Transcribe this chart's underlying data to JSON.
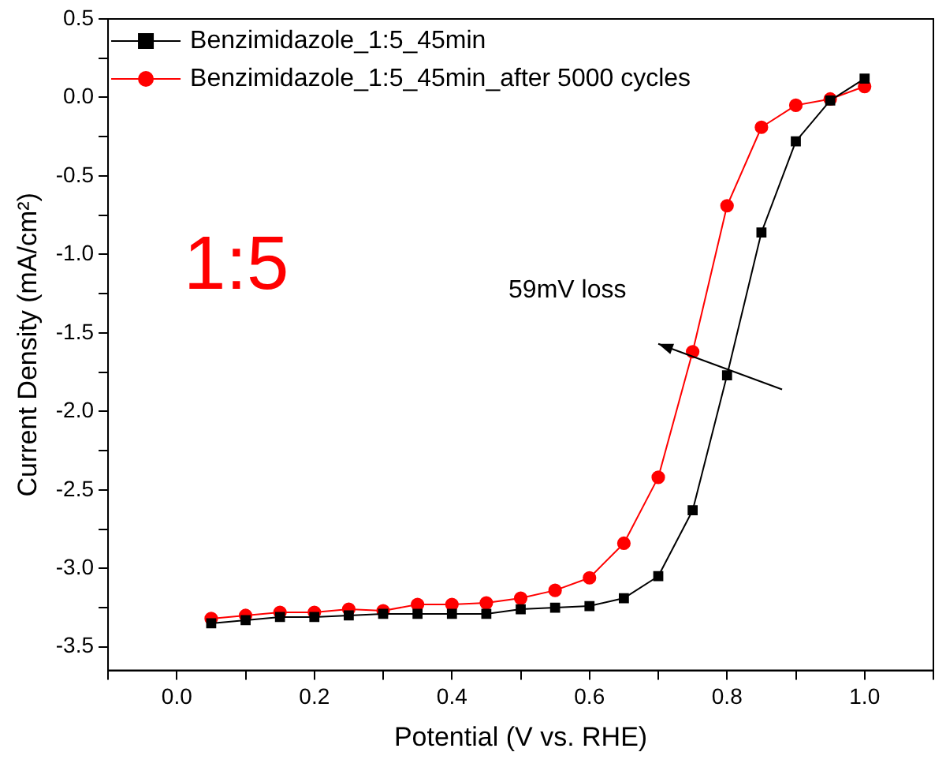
{
  "chart_data": {
    "type": "line",
    "xlabel": "Potential (V vs. RHE)",
    "ylabel": "Current Density (mA/cm²)",
    "x": [
      0.05,
      0.1,
      0.15,
      0.2,
      0.25,
      0.3,
      0.35,
      0.4,
      0.45,
      0.5,
      0.55,
      0.6,
      0.65,
      0.7,
      0.75,
      0.8,
      0.85,
      0.9,
      0.95,
      1.0
    ],
    "series": [
      {
        "name": "Benzimidazole_1:5_45min",
        "color": "#000000",
        "marker": "square",
        "values": [
          -3.35,
          -3.33,
          -3.31,
          -3.31,
          -3.3,
          -3.29,
          -3.29,
          -3.29,
          -3.29,
          -3.26,
          -3.25,
          -3.24,
          -3.19,
          -3.05,
          -2.63,
          -1.77,
          -0.86,
          -0.28,
          -0.02,
          0.12
        ]
      },
      {
        "name": "Benzimidazole_1:5_45min_after 5000 cycles",
        "color": "#ff0000",
        "marker": "circle",
        "values": [
          -3.32,
          -3.3,
          -3.28,
          -3.28,
          -3.26,
          -3.27,
          -3.23,
          -3.23,
          -3.22,
          -3.19,
          -3.14,
          -3.06,
          -2.84,
          -2.42,
          -1.62,
          -0.69,
          -0.19,
          -0.05,
          -0.01,
          0.07
        ]
      }
    ],
    "xlim": [
      -0.1,
      1.1
    ],
    "xticks": [
      {
        "value": -0.1,
        "label": null
      },
      {
        "value": 0,
        "label": "0.0"
      },
      {
        "value": 0.1,
        "label": null
      },
      {
        "value": 0.2,
        "label": "0.2"
      },
      {
        "value": 0.3,
        "label": null
      },
      {
        "value": 0.4,
        "label": "0.4"
      },
      {
        "value": 0.5,
        "label": null
      },
      {
        "value": 0.6,
        "label": "0.6"
      },
      {
        "value": 0.7,
        "label": null
      },
      {
        "value": 0.8,
        "label": "0.8"
      },
      {
        "value": 0.9,
        "label": null
      },
      {
        "value": 1.0,
        "label": "1.0"
      },
      {
        "value": 1.1,
        "label": null
      }
    ],
    "ylim": [
      -3.65,
      0.5
    ],
    "yticks": [
      {
        "value": -3.5,
        "label": "-3.5"
      },
      {
        "value": -3.25,
        "label": null
      },
      {
        "value": -3,
        "label": "-3.0"
      },
      {
        "value": -2.75,
        "label": null
      },
      {
        "value": -2.5,
        "label": "-2.5"
      },
      {
        "value": -2.25,
        "label": null
      },
      {
        "value": -2,
        "label": "-2.0"
      },
      {
        "value": -1.75,
        "label": null
      },
      {
        "value": -1.5,
        "label": "-1.5"
      },
      {
        "value": -1.25,
        "label": null
      },
      {
        "value": -1,
        "label": "-1.0"
      },
      {
        "value": -0.75,
        "label": null
      },
      {
        "value": -0.5,
        "label": "-0.5"
      },
      {
        "value": -0.25,
        "label": null
      },
      {
        "value": 0,
        "label": "0.0"
      },
      {
        "value": 0.25,
        "label": null
      },
      {
        "value": 0.5,
        "label": "0.5"
      }
    ],
    "annotations": [
      "1:5",
      "59mV loss"
    ],
    "grid": false,
    "legend": "top left",
    "line_style": "solid"
  }
}
